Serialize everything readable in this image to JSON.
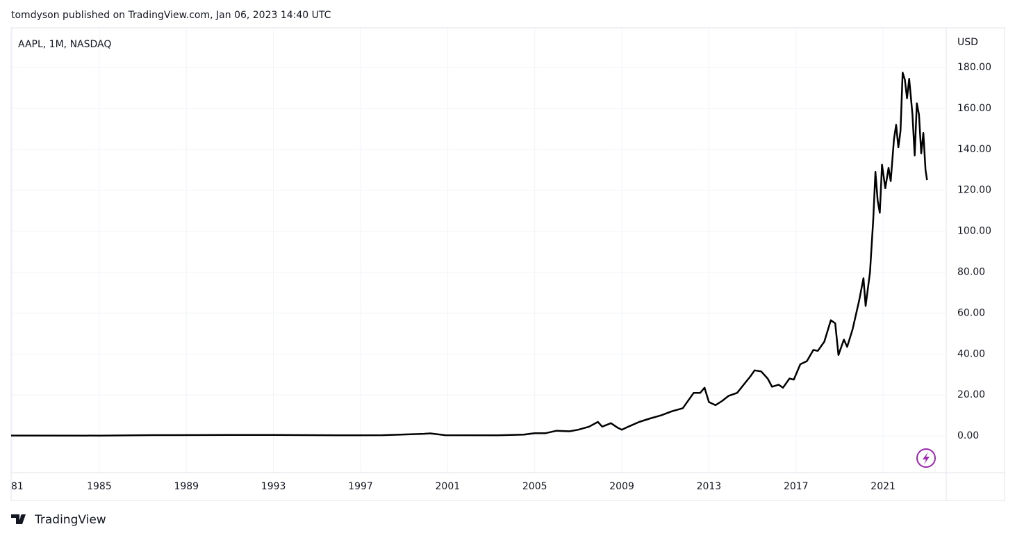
{
  "header": "tomdyson published on TradingView.com, Jan 06, 2023 14:40 UTC",
  "footer": "TradingView",
  "chart_data": {
    "type": "line",
    "title": "AAPL, 1M, NASDAQ",
    "y_unit": "USD",
    "color": "#000000",
    "grid": true,
    "xlim": [
      1980.95,
      2023.9
    ],
    "ylim": [
      -18,
      199.4
    ],
    "xticks": [
      {
        "value": 1981,
        "label": "81"
      },
      1985,
      1989,
      1993,
      1997,
      2001,
      2005,
      2009,
      2013,
      2017,
      2021
    ],
    "yticks": [
      {
        "value": 0,
        "label": "0.00"
      },
      {
        "value": 20,
        "label": "20.00"
      },
      {
        "value": 40,
        "label": "40.00"
      },
      {
        "value": 60,
        "label": "60.00"
      },
      {
        "value": 80,
        "label": "80.00"
      },
      {
        "value": 100,
        "label": "100.00"
      },
      {
        "value": 120,
        "label": "120.00"
      },
      {
        "value": 140,
        "label": "140.00"
      },
      {
        "value": 160,
        "label": "160.00"
      },
      {
        "value": 180,
        "label": "180.00"
      }
    ],
    "x": [
      1980.95,
      1985,
      1987.5,
      1991,
      1993,
      1996,
      1998,
      1999.9,
      2000.2,
      2000.9,
      2003.3,
      2004.5,
      2005,
      2005.5,
      2006,
      2006.6,
      2007,
      2007.5,
      2007.9,
      2008.1,
      2008.5,
      2008.8,
      2009.0,
      2009.3,
      2009.8,
      2010.3,
      2010.8,
      2011.3,
      2011.8,
      2012.3,
      2012.6,
      2012.8,
      2013.0,
      2013.3,
      2013.6,
      2013.9,
      2014.3,
      2014.6,
      2014.9,
      2015.1,
      2015.4,
      2015.7,
      2015.9,
      2016.2,
      2016.4,
      2016.7,
      2016.9,
      2017.2,
      2017.5,
      2017.8,
      2018.0,
      2018.3,
      2018.6,
      2018.8,
      2018.95,
      2019.2,
      2019.35,
      2019.6,
      2019.9,
      2020.1,
      2020.2,
      2020.4,
      2020.55,
      2020.65,
      2020.75,
      2020.85,
      2020.95,
      2021.1,
      2021.25,
      2021.35,
      2021.5,
      2021.6,
      2021.7,
      2021.8,
      2021.9,
      2022.0,
      2022.1,
      2022.2,
      2022.35,
      2022.45,
      2022.55,
      2022.65,
      2022.75,
      2022.85,
      2022.95,
      2023.02
    ],
    "values": [
      0.15,
      0.1,
      0.35,
      0.4,
      0.4,
      0.25,
      0.3,
      1.0,
      1.2,
      0.3,
      0.25,
      0.6,
      1.3,
      1.3,
      2.5,
      2.2,
      3,
      4.5,
      6.8,
      4.5,
      6.2,
      4.0,
      3.0,
      4.5,
      6.8,
      8.5,
      10,
      12,
      13.5,
      21,
      21,
      23.5,
      16.5,
      15,
      17,
      19.5,
      21,
      25,
      29,
      32,
      31.5,
      28,
      24,
      25,
      23.5,
      28,
      27.5,
      35,
      36.5,
      42,
      41.5,
      46,
      56.5,
      55,
      39.5,
      47,
      43.5,
      52,
      66,
      77,
      63.5,
      80,
      106,
      129,
      115,
      109,
      132.5,
      121,
      131,
      124.5,
      145,
      152,
      141,
      149,
      177.5,
      174,
      165,
      174.5,
      157,
      137,
      162.5,
      157,
      138,
      148,
      129.9,
      125
    ]
  }
}
